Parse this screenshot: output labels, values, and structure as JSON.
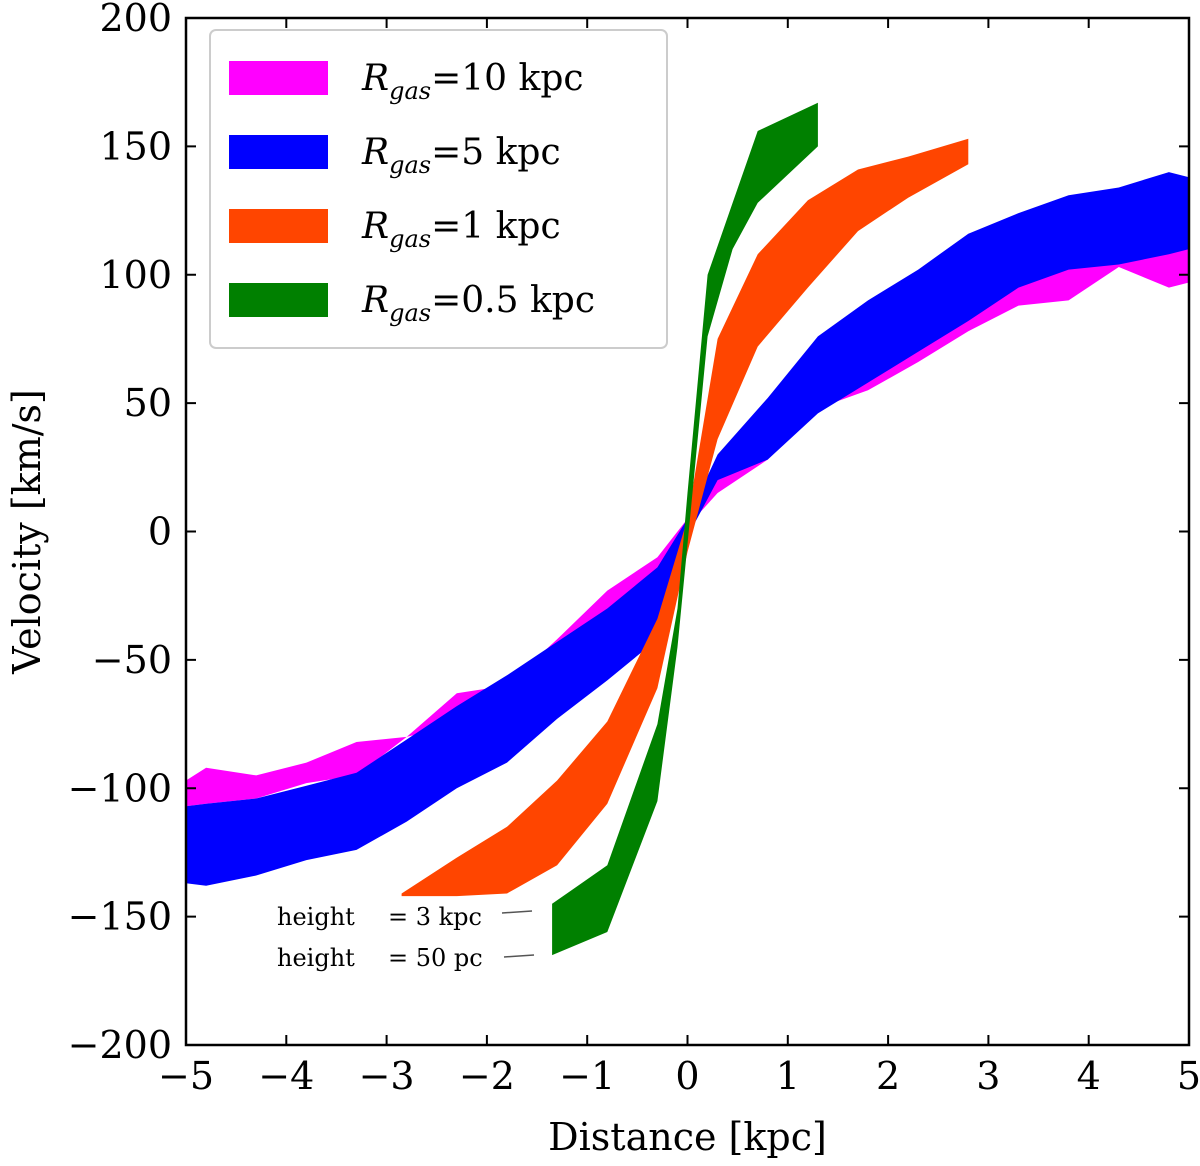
{
  "chart_data": {
    "type": "area",
    "xlabel": "Distance [kpc]",
    "ylabel": "Velocity [km/s]",
    "xlim": [
      -5,
      5
    ],
    "ylim": [
      -200,
      200
    ],
    "xticks": [
      -5,
      -4,
      -3,
      -2,
      -1,
      0,
      1,
      2,
      3,
      4,
      5
    ],
    "yticks": [
      -200,
      -150,
      -100,
      -50,
      0,
      50,
      100,
      150,
      200
    ],
    "xtick_labels": [
      "−5",
      "−4",
      "−3",
      "−2",
      "−1",
      "0",
      "1",
      "2",
      "3",
      "4",
      "5"
    ],
    "ytick_labels": [
      "−200",
      "−150",
      "−100",
      "−50",
      "0",
      "50",
      "100",
      "150",
      "200"
    ],
    "legend_position": "top-left",
    "series": [
      {
        "name": "R_gas=10 kpc",
        "legend_main": "R",
        "legend_sub": "gas",
        "legend_value": "=10 kpc",
        "color": "#ff00ff",
        "x": [
          -5.0,
          -4.8,
          -4.3,
          -3.8,
          -3.3,
          -2.8,
          -2.3,
          -1.8,
          -1.3,
          -0.8,
          -0.3,
          0.0,
          0.3,
          0.8,
          1.3,
          1.8,
          2.3,
          2.8,
          3.3,
          3.8,
          4.3,
          4.8,
          5.0
        ],
        "upper": [
          -97,
          -92,
          -95,
          -90,
          -82,
          -80,
          -63,
          -60,
          -42,
          -23,
          -10,
          5,
          22,
          33,
          50,
          63,
          78,
          92,
          102,
          107,
          112,
          113,
          112
        ],
        "lower": [
          -107,
          -106,
          -104,
          -98,
          -95,
          -80,
          -75,
          -70,
          -55,
          -35,
          -18,
          2,
          15,
          28,
          48,
          55,
          66,
          78,
          88,
          90,
          103,
          95,
          97
        ]
      },
      {
        "name": "R_gas=5 kpc",
        "legend_main": "R",
        "legend_sub": "gas",
        "legend_value": "=5 kpc",
        "color": "#0000ff",
        "x": [
          -5.0,
          -4.8,
          -4.3,
          -3.8,
          -3.3,
          -2.8,
          -2.3,
          -1.8,
          -1.3,
          -0.8,
          -0.3,
          0.0,
          0.3,
          0.8,
          1.3,
          1.8,
          2.3,
          2.8,
          3.3,
          3.8,
          4.3,
          4.8,
          5.0
        ],
        "upper": [
          -107,
          -106,
          -104,
          -99,
          -94,
          -81,
          -68,
          -56,
          -43,
          -30,
          -14,
          5,
          30,
          52,
          76,
          90,
          102,
          116,
          124,
          131,
          134,
          140,
          138
        ],
        "lower": [
          -137,
          -138,
          -134,
          -128,
          -124,
          -113,
          -100,
          -90,
          -73,
          -58,
          -42,
          -2,
          20,
          28,
          46,
          58,
          70,
          82,
          95,
          102,
          104,
          108,
          110
        ]
      },
      {
        "name": "R_gas=1 kpc",
        "legend_main": "R",
        "legend_sub": "gas",
        "legend_value": "=1 kpc",
        "color": "#ff4500",
        "x": [
          -2.85,
          -2.3,
          -1.8,
          -1.3,
          -0.8,
          -0.3,
          0.0,
          0.3,
          0.7,
          1.2,
          1.7,
          2.2,
          2.8
        ],
        "upper": [
          -141,
          -127,
          -115,
          -97,
          -74,
          -34,
          5,
          75,
          108,
          129,
          141,
          146,
          153
        ],
        "lower": [
          -142,
          -142,
          -141,
          -130,
          -106,
          -61,
          -8,
          36,
          72,
          95,
          117,
          130,
          143
        ]
      },
      {
        "name": "R_gas=0.5 kpc",
        "legend_main": "R",
        "legend_sub": "gas",
        "legend_value": "=0.5 kpc",
        "color": "#008000",
        "x": [
          -1.35,
          -0.8,
          -0.3,
          -0.1,
          0.0,
          0.2,
          0.45,
          0.7,
          1.3
        ],
        "upper": [
          -145,
          -130,
          -75,
          -30,
          15,
          100,
          128,
          156,
          167
        ],
        "lower": [
          -165,
          -156,
          -105,
          -45,
          -5,
          76,
          110,
          128,
          150
        ]
      }
    ],
    "annotations": [
      {
        "label": "height",
        "value": "= 3 kpc"
      },
      {
        "label": "height",
        "value": "= 50 pc"
      }
    ]
  }
}
